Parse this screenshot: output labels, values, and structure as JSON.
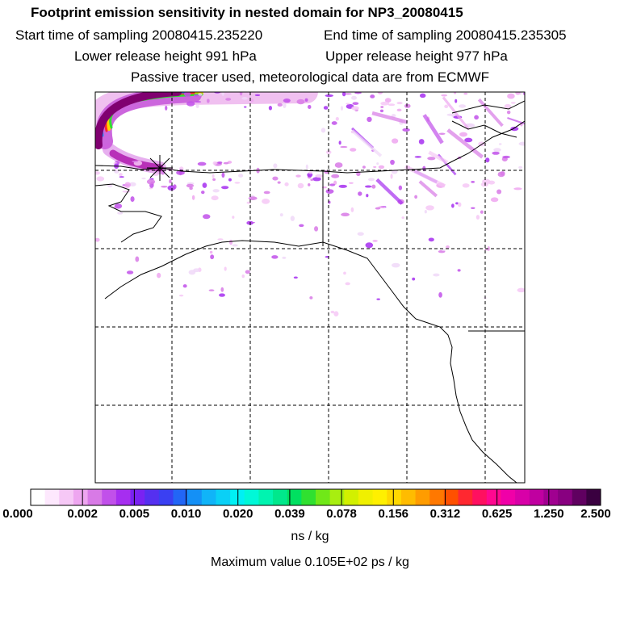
{
  "header": {
    "title": "Footprint emission sensitivity in nested domain for NP3_20080415",
    "start": "Start time of sampling 20080415.235220",
    "end": "End time of sampling 20080415.235305",
    "lower": "Lower release height  991 hPa",
    "upper": "Upper release height  977 hPa",
    "tracer": "Passive tracer used, meteorological data are from ECMWF"
  },
  "chart_data": {
    "type": "heatmap",
    "colorbar": {
      "ticks": [
        "0.000",
        "0.002",
        "0.005",
        "0.010",
        "0.020",
        "0.039",
        "0.078",
        "0.156",
        "0.312",
        "0.625",
        "1.250",
        "2.500"
      ],
      "unit": "ns / kg",
      "colors": [
        "#ffffff",
        "#fde8fd",
        "#f6c8f6",
        "#eea6f0",
        "#d87ae6",
        "#c150ea",
        "#a62ef0",
        "#7a22f2",
        "#5530f0",
        "#3a40f2",
        "#2266f6",
        "#1490f6",
        "#10b4f8",
        "#0ad0f6",
        "#00f0f4",
        "#00f8d8",
        "#00f4b0",
        "#00e88c",
        "#00e060",
        "#30e030",
        "#70e818",
        "#a8ee10",
        "#d2f000",
        "#f0f000",
        "#fff000",
        "#ffd800",
        "#ffbc00",
        "#ff9c00",
        "#ff7800",
        "#ff5000",
        "#ff2830",
        "#ff1060",
        "#ff0890",
        "#f000a8",
        "#d800a8",
        "#c000a0",
        "#a00090",
        "#880080",
        "#600060",
        "#3a0040"
      ]
    },
    "maximum": "Maximum value  0.105E+02 ps / kg",
    "release_marker": {
      "lon": -156.8,
      "lat": 71.3
    }
  }
}
